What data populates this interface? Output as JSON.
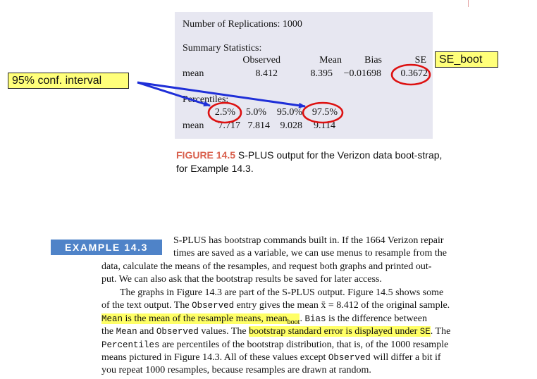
{
  "output": {
    "replications": "Number of Replications: 1000",
    "summary_heading": "Summary Statistics:",
    "summary_columns": [
      "Observed",
      "Mean",
      "Bias",
      "SE"
    ],
    "summary_row_label": "mean",
    "summary_values": [
      "8.412",
      "8.395",
      "−0.01698",
      "0.3672"
    ],
    "percentiles_heading": "Percentiles:",
    "percentile_columns": [
      "2.5%",
      "5.0%",
      "95.0%",
      "97.5%"
    ],
    "percentile_row_label": "mean",
    "percentile_values": [
      "7.717",
      "7.814",
      "9.028",
      "9.114"
    ]
  },
  "annotations": {
    "se_label": "SE_boot",
    "ci_label": "95% conf. interval",
    "colors": {
      "circle": "#dd1111",
      "arrow": "#1f2fd8",
      "callout_bg": "#ffff7a"
    }
  },
  "figure_caption": {
    "label": "FIGURE 14.5",
    "text": "S-PLUS output for the Verizon data boot-strap, for Example 14.3."
  },
  "example": {
    "badge": "EXAMPLE 14.3",
    "p1_line1": "S-PLUS has bootstrap commands built in. If the 1664 Verizon repair",
    "p1_line2": "times are saved as a variable, we can use menus to resample from the",
    "p1_line3": "data, calculate the means of the resamples, and request both graphs and printed out-",
    "p1_line4": "put. We can also ask that the bootstrap results be saved for later access.",
    "p2_line1": "The graphs in Figure 14.3 are part of the S-PLUS output. Figure 14.5 shows some",
    "p2_line2_a": "of the text output. The",
    "p2_line2_code": "Observed",
    "p2_line2_b": "entry gives the mean x̄ = 8.412 of the original sample.",
    "p2_line3_hl_code": "Mean",
    "p2_line3_hl_text": "is the mean of the resample means, mean",
    "p2_line3_hl_sub": "boot",
    "p2_line3_b": ".",
    "p2_line3_code": "Bias",
    "p2_line3_c": "is the difference between",
    "p2_line4_a": "the",
    "p2_line4_code1": "Mean",
    "p2_line4_b": "and",
    "p2_line4_code2": "Observed",
    "p2_line4_c": "values. The",
    "p2_line4_hl_a": "bootstrap standard error is displayed under",
    "p2_line4_hl_code": "SE",
    "p2_line4_d": ". The",
    "p2_line5_code": "Percentiles",
    "p2_line5_b": "are percentiles of the bootstrap distribution, that is, of the 1000 resample",
    "p2_line6_a": "means pictured in Figure 14.3. All of these values except",
    "p2_line6_code": "Observed",
    "p2_line6_b": "will differ a bit if",
    "p2_line7": "you repeat 1000 resamples, because resamples are drawn at random."
  }
}
